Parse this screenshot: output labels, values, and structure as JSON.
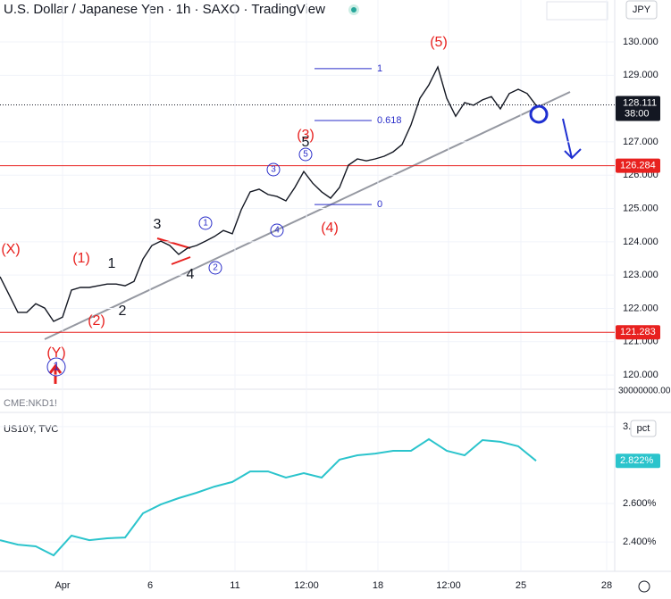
{
  "chart_data": [
    {
      "type": "line",
      "title": "U.S. Dollar / Japanese Yen · 1h · SAXO · TradingView",
      "currency": "JPY",
      "color": "#131722",
      "x": [
        0,
        1,
        2,
        3,
        4,
        5,
        6,
        7,
        8,
        9,
        10,
        11,
        12,
        13,
        14,
        15,
        16,
        17,
        18,
        19,
        20,
        21,
        22,
        23,
        24,
        25,
        26,
        27,
        28,
        29,
        30,
        31,
        32,
        33,
        34,
        35,
        36,
        37,
        38,
        39,
        40,
        41,
        42,
        43,
        44,
        45,
        46,
        47,
        48,
        49,
        50,
        51,
        52,
        53,
        54,
        55,
        56,
        57,
        58,
        59,
        60
      ],
      "values": [
        122.95,
        122.42,
        121.88,
        121.88,
        122.14,
        122.01,
        121.61,
        121.74,
        122.55,
        122.63,
        122.63,
        122.68,
        122.73,
        122.73,
        122.68,
        122.81,
        123.48,
        123.89,
        124.02,
        123.89,
        123.62,
        123.81,
        123.89,
        124.02,
        124.16,
        124.34,
        124.24,
        124.96,
        125.5,
        125.58,
        125.42,
        125.36,
        125.23,
        125.63,
        126.11,
        125.76,
        125.5,
        125.31,
        125.63,
        126.3,
        126.49,
        126.43,
        126.49,
        126.57,
        126.7,
        126.92,
        127.51,
        128.31,
        128.71,
        129.25,
        128.31,
        127.77,
        128.18,
        128.1,
        128.26,
        128.36,
        127.99,
        128.45,
        128.58,
        128.45,
        128.1
      ],
      "xlim": [
        0,
        68.8
      ],
      "ylim": [
        119.6,
        131.26
      ],
      "xticks": [
        {
          "value": 7,
          "label": "Apr"
        },
        {
          "value": 16.8,
          "label": "6"
        },
        {
          "value": 26.3,
          "label": "11"
        },
        {
          "value": 34.3,
          "label": "12:00"
        },
        {
          "value": 42.3,
          "label": "18"
        },
        {
          "value": 50.2,
          "label": "12:00"
        },
        {
          "value": 58.3,
          "label": "25"
        },
        {
          "value": 67.9,
          "label": "28"
        }
      ],
      "yticks": [
        {
          "value": 120,
          "label": "120.000"
        },
        {
          "value": 121,
          "label": "121.000"
        },
        {
          "value": 122,
          "label": "122.000"
        },
        {
          "value": 123,
          "label": "123.000"
        },
        {
          "value": 124,
          "label": "124.000"
        },
        {
          "value": 125,
          "label": "125.000"
        },
        {
          "value": 126,
          "label": "126.000"
        },
        {
          "value": 127,
          "label": "127.000"
        },
        {
          "value": 129,
          "label": "129.000"
        },
        {
          "value": 130,
          "label": "130.000"
        }
      ],
      "last_price": 128.111,
      "countdown": "38:00",
      "levels": [
        {
          "value": 126.284,
          "color": "#e8211f"
        },
        {
          "value": 121.283,
          "color": "#e8211f"
        }
      ],
      "fib": {
        "levels": [
          1,
          0.618,
          0
        ],
        "prices": [
          129.2,
          127.64,
          125.12
        ],
        "color": "#2a2ec9"
      },
      "annotations": [
        "(X)",
        "(1)",
        "(2)",
        "(Y)",
        "(3)",
        "(4)",
        "(5)",
        "1",
        "2",
        "3",
        "4",
        "5",
        "1",
        "2",
        "3",
        "4",
        "5",
        "1"
      ],
      "indicator": {
        "name": "CME:NKD1!",
        "tick": "30000000.00"
      }
    },
    {
      "type": "line",
      "title": "US10Y, TVC",
      "unit": "pct",
      "color": "#2bc4cc",
      "x": [
        0,
        2,
        4,
        6,
        8,
        10,
        12,
        14,
        16,
        18,
        20,
        22,
        24,
        26,
        28,
        30,
        32,
        34,
        36,
        38,
        40,
        42,
        44,
        46,
        48,
        50,
        52,
        54,
        56,
        58,
        60
      ],
      "values": [
        2.409,
        2.386,
        2.377,
        2.33,
        2.433,
        2.409,
        2.419,
        2.423,
        2.549,
        2.595,
        2.628,
        2.656,
        2.688,
        2.712,
        2.767,
        2.767,
        2.735,
        2.758,
        2.735,
        2.828,
        2.851,
        2.86,
        2.874,
        2.874,
        2.935,
        2.874,
        2.851,
        2.93,
        2.921,
        2.898,
        2.822
      ],
      "last_label": "2.822%",
      "xlim": [
        0,
        68.8
      ],
      "ylim": [
        2.247,
        3.074
      ],
      "yticks": [
        {
          "value": 2.4,
          "label": "2.400%"
        },
        {
          "value": 2.6,
          "label": "2.600%"
        },
        {
          "value": 3,
          "label": "3."
        }
      ]
    }
  ]
}
